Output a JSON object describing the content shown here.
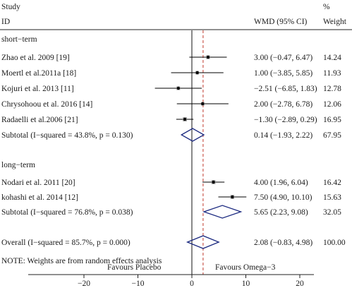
{
  "header": {
    "study_line1": "Study",
    "study_line2": "ID",
    "effect_header": "WMD (95% CI)",
    "weight_line1": "%",
    "weight_line2": "Weight"
  },
  "note": "NOTE: Weights are from random effects analysis",
  "favours_left": "Favours Placebo",
  "favours_right": "Favours Omega−3",
  "colors": {
    "pooled_diamond": "#1c2a80",
    "overall_line": "#c0392b",
    "marker": "#000000"
  },
  "chart_data": {
    "type": "forest",
    "measure": "WMD",
    "xlim": [
      -28,
      28
    ],
    "xticks": [
      -20,
      -10,
      0,
      10,
      20
    ],
    "xtick_labels": [
      "−20",
      "−10",
      "0",
      "10",
      "20"
    ],
    "null_value": 0,
    "overall_estimate_line": 2.08,
    "groups": [
      {
        "label": "short−term",
        "studies": [
          {
            "name": "Zhao et al. 2009 [19]",
            "est": 3.0,
            "lo": -0.47,
            "hi": 6.47,
            "ci_text": "3.00 (−0.47, 6.47)",
            "weight": "14.24"
          },
          {
            "name": "Moertl et al.2011a [18]",
            "est": 1.0,
            "lo": -3.85,
            "hi": 5.85,
            "ci_text": "1.00 (−3.85, 5.85)",
            "weight": "11.93"
          },
          {
            "name": "Kojuri et al. 2013 [11]",
            "est": -2.51,
            "lo": -6.85,
            "hi": 1.83,
            "ci_text": "−2.51 (−6.85, 1.83)",
            "weight": "12.78"
          },
          {
            "name": "Chrysohoou et al. 2016 [14]",
            "est": 2.0,
            "lo": -2.78,
            "hi": 6.78,
            "ci_text": "2.00 (−2.78, 6.78)",
            "weight": "12.06"
          },
          {
            "name": "Radaelli et al.2006 [21]",
            "est": -1.3,
            "lo": -2.89,
            "hi": 0.29,
            "ci_text": "−1.30 (−2.89, 0.29)",
            "weight": "16.95"
          }
        ],
        "subtotal": {
          "label": "Subtotal  (I−squared = 43.8%, p = 0.130)",
          "est": 0.14,
          "lo": -1.93,
          "hi": 2.22,
          "ci_text": "0.14 (−1.93, 2.22)",
          "weight": "67.95"
        }
      },
      {
        "label": "long−term",
        "studies": [
          {
            "name": "Nodari et al. 2011 [20]",
            "est": 4.0,
            "lo": 1.96,
            "hi": 6.04,
            "ci_text": "4.00 (1.96, 6.04)",
            "weight": "16.42"
          },
          {
            "name": "kohashi et al. 2014 [12]",
            "est": 7.5,
            "lo": 4.9,
            "hi": 10.1,
            "ci_text": "7.50 (4.90, 10.10)",
            "weight": "15.63"
          }
        ],
        "subtotal": {
          "label": "Subtotal  (I−squared = 76.8%, p = 0.038)",
          "est": 5.65,
          "lo": 2.23,
          "hi": 9.08,
          "ci_text": "5.65 (2.23, 9.08)",
          "weight": "32.05"
        }
      }
    ],
    "overall": {
      "label": "Overall  (I−squared = 85.7%, p = 0.000)",
      "est": 2.08,
      "lo": -0.83,
      "hi": 4.98,
      "ci_text": "2.08 (−0.83, 4.98)",
      "weight": "100.00"
    }
  }
}
